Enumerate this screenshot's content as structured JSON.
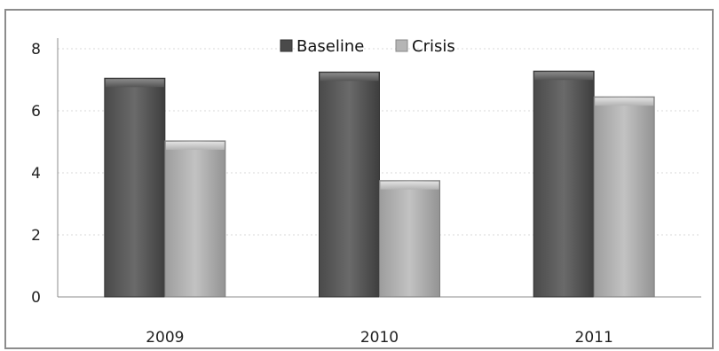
{
  "chart_data": {
    "type": "bar",
    "categories": [
      "2009",
      "2010",
      "2011"
    ],
    "series": [
      {
        "name": "Baseline",
        "values": [
          7.05,
          7.25,
          7.28
        ]
      },
      {
        "name": "Crisis",
        "values": [
          5.03,
          3.75,
          6.45
        ]
      }
    ],
    "ylim": [
      0,
      8
    ],
    "yticks": [
      "0",
      "2",
      "4",
      "6",
      "8"
    ],
    "grid": true,
    "legend_position": "top-center",
    "colors": {
      "Baseline": "#5b5b5b",
      "Crisis": "#b0b0b0"
    }
  }
}
